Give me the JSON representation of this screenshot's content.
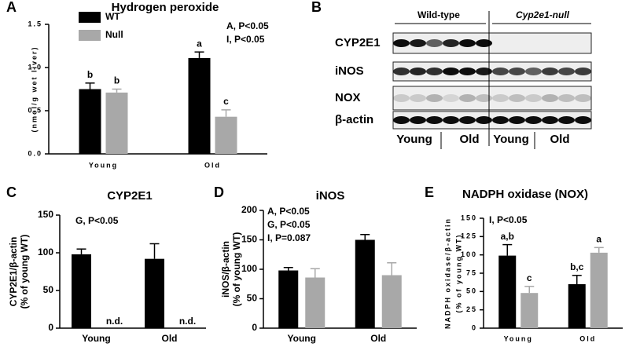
{
  "chart_data": [
    {
      "type": "bar",
      "panel": "A",
      "title": "Hydrogen peroxide",
      "ylabel": "(nmol/g wet liver)",
      "categories": [
        "Young",
        "Old"
      ],
      "series": [
        {
          "name": "WT",
          "color": "#000000",
          "values": [
            0.75,
            1.11
          ],
          "errors": [
            0.07,
            0.07
          ],
          "significance": [
            "b",
            "a"
          ]
        },
        {
          "name": "Null",
          "color": "#a8a8a8",
          "values": [
            0.71,
            0.43
          ],
          "errors": [
            0.04,
            0.08
          ],
          "significance": [
            "b",
            "c"
          ]
        }
      ],
      "ylim": [
        0,
        1.5
      ],
      "yticks": [
        {
          "value": 0,
          "label": "0.0"
        },
        0.5,
        {
          "value": 1,
          "label": "1.0"
        },
        1.5
      ],
      "annotations": [
        "A, P<0.05",
        "I, P<0.05"
      ],
      "legend": "top-left"
    },
    {
      "type": "bar",
      "panel": "C",
      "title": "CYP2E1",
      "ylabel": [
        "CYP2E1/β-actin",
        "(% of young WT)"
      ],
      "categories": [
        "Young",
        "Old"
      ],
      "series": [
        {
          "name": "WT",
          "color": "#000000",
          "values": [
            98,
            92
          ],
          "errors": [
            7,
            20
          ]
        },
        {
          "name": "Null",
          "color": "#a8a8a8",
          "values": [
            null,
            null
          ],
          "value_labels": [
            "n.d.",
            "n.d."
          ]
        }
      ],
      "ylim": [
        0,
        150
      ],
      "yticks": [
        0,
        50,
        100,
        150
      ],
      "annotations": [
        "G, P<0.05"
      ]
    },
    {
      "type": "bar",
      "panel": "D",
      "title": "iNOS",
      "ylabel": [
        "iNOS/β-actin",
        "(% of young WT)"
      ],
      "categories": [
        "Young",
        "Old"
      ],
      "series": [
        {
          "name": "WT",
          "color": "#000000",
          "values": [
            98,
            150
          ],
          "errors": [
            5,
            9
          ]
        },
        {
          "name": "Null",
          "color": "#a8a8a8",
          "values": [
            86,
            90
          ],
          "errors": [
            15,
            21
          ]
        }
      ],
      "ylim": [
        0,
        200
      ],
      "yticks": [
        0,
        50,
        100,
        150,
        200
      ],
      "annotations": [
        "A, P<0.05",
        "G, P<0.05",
        "I, P=0.087"
      ]
    },
    {
      "type": "bar",
      "panel": "E",
      "title": "NADPH oxidase (NOX)",
      "ylabel": [
        "NADPH oxidase/β-actin",
        "(% of young WT)"
      ],
      "categories": [
        "Young",
        "Old"
      ],
      "series": [
        {
          "name": "WT",
          "color": "#000000",
          "values": [
            99,
            60
          ],
          "errors": [
            15,
            12
          ],
          "significance": [
            "a,b",
            "b,c"
          ]
        },
        {
          "name": "Null",
          "color": "#a8a8a8",
          "values": [
            48,
            103
          ],
          "errors": [
            9,
            7
          ],
          "significance": [
            "c",
            "a"
          ]
        }
      ],
      "ylim": [
        0,
        150
      ],
      "yticks": [
        0,
        25,
        50,
        75,
        100,
        125,
        150
      ],
      "annotations": [
        "I, P<0.05"
      ]
    }
  ],
  "blot": {
    "panel": "B",
    "groups": [
      "Wild-type",
      "Cyp2e1-null"
    ],
    "rows": [
      "CYP2E1",
      "iNOS",
      "NOX",
      "β-actin"
    ],
    "ages": [
      "Young",
      "Old",
      "Young",
      "Old"
    ]
  }
}
